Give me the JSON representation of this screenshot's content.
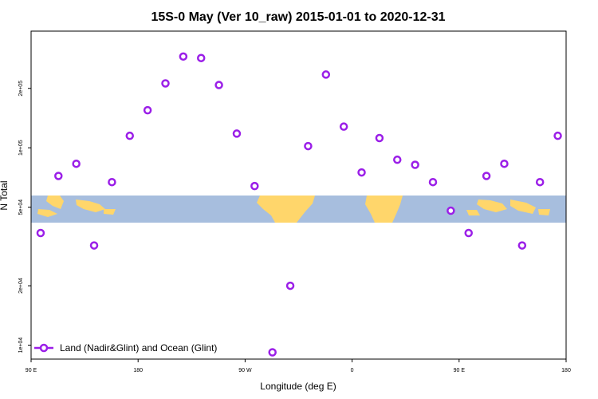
{
  "chart_data": {
    "type": "scatter",
    "title": "15S-0 May (Ver 10_raw)   2015-01-01 to 2020-12-31",
    "xlabel": "Longitude (deg E)",
    "ylabel": "N Total",
    "x_ticks": [
      {
        "value": 90,
        "label": "90 E"
      },
      {
        "value": 180,
        "label": "180"
      },
      {
        "value": 270,
        "label": "90 W"
      },
      {
        "value": 360,
        "label": "0"
      },
      {
        "value": 450,
        "label": "90 E"
      },
      {
        "value": 540,
        "label": "180"
      }
    ],
    "y_ticks": [
      {
        "value": 10000,
        "label": "1e+04"
      },
      {
        "value": 20000,
        "label": "2e+04"
      },
      {
        "value": 50000,
        "label": "5e+04"
      },
      {
        "value": 100000,
        "label": "1e+05"
      },
      {
        "value": 200000,
        "label": "2e+05"
      }
    ],
    "xlim": [
      90,
      540
    ],
    "ylim": [
      8500,
      390000
    ],
    "y_scale": "log",
    "background": "world map strip in the middle (ocean blue, land yellow)",
    "legend": {
      "position": "bottom-left",
      "entries": [
        "Land (Nadir&Glint) and Ocean (Glint)"
      ]
    },
    "series": [
      {
        "name": "Land (Nadir&Glint) and Ocean (Glint)",
        "color": "#9B1FE8",
        "marker": "open-circle",
        "points": [
          {
            "x": 98,
            "y": 37000
          },
          {
            "x": 113,
            "y": 72000
          },
          {
            "x": 128,
            "y": 83000
          },
          {
            "x": 143,
            "y": 32000
          },
          {
            "x": 158,
            "y": 67000
          },
          {
            "x": 173,
            "y": 115000
          },
          {
            "x": 188,
            "y": 155000
          },
          {
            "x": 203,
            "y": 212000
          },
          {
            "x": 218,
            "y": 290000
          },
          {
            "x": 233,
            "y": 285000
          },
          {
            "x": 248,
            "y": 208000
          },
          {
            "x": 263,
            "y": 118000
          },
          {
            "x": 278,
            "y": 64000
          },
          {
            "x": 293,
            "y": 9200
          },
          {
            "x": 308,
            "y": 20000
          },
          {
            "x": 323,
            "y": 102000
          },
          {
            "x": 338,
            "y": 235000
          },
          {
            "x": 353,
            "y": 128000
          },
          {
            "x": 368,
            "y": 75000
          },
          {
            "x": 383,
            "y": 112000
          },
          {
            "x": 398,
            "y": 87000
          },
          {
            "x": 413,
            "y": 82000
          },
          {
            "x": 428,
            "y": 67000
          },
          {
            "x": 443,
            "y": 48000
          },
          {
            "x": 458,
            "y": 37000
          },
          {
            "x": 473,
            "y": 72000
          },
          {
            "x": 488,
            "y": 83000
          },
          {
            "x": 503,
            "y": 32000
          },
          {
            "x": 518,
            "y": 67000
          },
          {
            "x": 533,
            "y": 115000
          }
        ]
      }
    ]
  }
}
